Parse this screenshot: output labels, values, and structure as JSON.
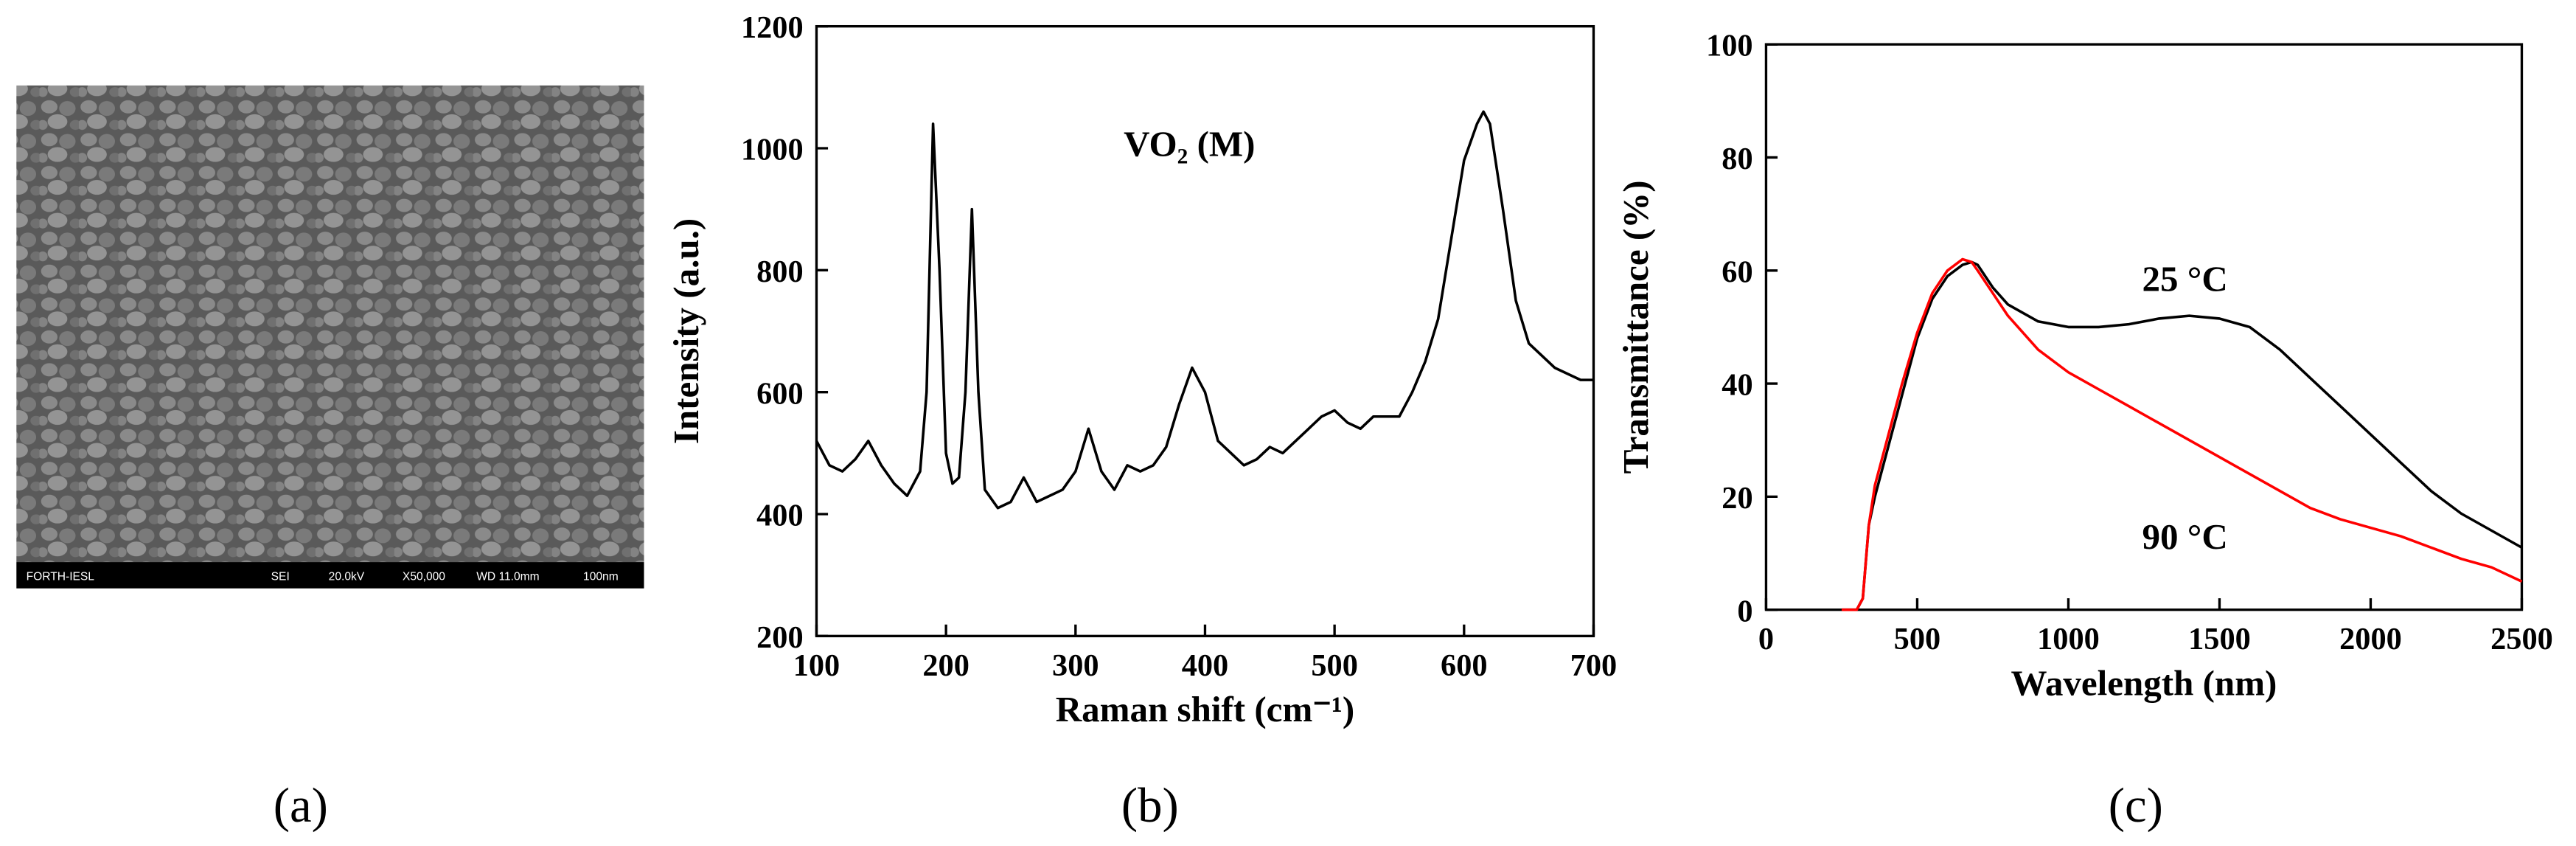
{
  "sem_image": {
    "label": "(a)",
    "info": [
      "FORTH-IESL",
      "SEI",
      "20.0kV",
      "X50,000",
      "WD 11.0mm",
      "100nm"
    ]
  },
  "chart_data": [
    {
      "type": "line",
      "label": "(b)",
      "annotation": "VO₂ (M)",
      "x_label": "Raman shift (cm⁻¹)",
      "y_label": "Intensity (a.u.)",
      "xlim": [
        100,
        700
      ],
      "xticks": [
        100,
        200,
        300,
        400,
        500,
        600,
        700
      ],
      "ylim": [
        200,
        1200
      ],
      "yticks": [
        200,
        400,
        600,
        800,
        1000,
        1200
      ],
      "color": "#000000",
      "x": [
        100,
        110,
        120,
        130,
        140,
        150,
        160,
        170,
        180,
        185,
        190,
        195,
        200,
        205,
        210,
        215,
        220,
        225,
        230,
        240,
        250,
        260,
        270,
        280,
        290,
        300,
        310,
        320,
        330,
        340,
        350,
        360,
        370,
        380,
        390,
        400,
        410,
        420,
        430,
        440,
        450,
        460,
        470,
        480,
        490,
        500,
        510,
        520,
        530,
        540,
        550,
        560,
        570,
        580,
        590,
        600,
        610,
        615,
        620,
        630,
        640,
        650,
        660,
        670,
        680,
        690,
        700
      ],
      "values": [
        520,
        480,
        470,
        490,
        520,
        480,
        450,
        430,
        470,
        600,
        1040,
        800,
        500,
        450,
        460,
        600,
        900,
        600,
        440,
        410,
        420,
        460,
        420,
        430,
        440,
        470,
        540,
        470,
        440,
        480,
        470,
        480,
        510,
        580,
        640,
        600,
        520,
        500,
        480,
        490,
        510,
        500,
        520,
        540,
        560,
        570,
        550,
        540,
        560,
        560,
        560,
        600,
        650,
        720,
        850,
        980,
        1040,
        1060,
        1040,
        900,
        750,
        680,
        660,
        640,
        630,
        620,
        620
      ]
    },
    {
      "type": "line",
      "label": "(c)",
      "x_label": "Wavelength (nm)",
      "y_label": "Transmittance (%)",
      "xlim": [
        0,
        2500
      ],
      "xticks": [
        0,
        500,
        1000,
        1500,
        2000,
        2500
      ],
      "ylim": [
        0,
        100
      ],
      "yticks": [
        0,
        20,
        40,
        60,
        80,
        100
      ],
      "x": [
        250,
        300,
        320,
        340,
        360,
        400,
        450,
        500,
        550,
        600,
        650,
        680,
        700,
        750,
        800,
        900,
        1000,
        1100,
        1200,
        1300,
        1400,
        1500,
        1600,
        1700,
        1800,
        1900,
        2000,
        2100,
        2200,
        2300,
        2400,
        2500
      ],
      "series": [
        {
          "name": "25 °C",
          "color": "#000000",
          "values": [
            0,
            0,
            2,
            15,
            20,
            28,
            38,
            48,
            55,
            59,
            61,
            61.5,
            61,
            57,
            54,
            51,
            50,
            50,
            50.5,
            51.5,
            52,
            51.5,
            50,
            46,
            41,
            36,
            31,
            26,
            21,
            17,
            14,
            11
          ]
        },
        {
          "name": "90 °C",
          "color": "#ff0000",
          "values": [
            0,
            0,
            2,
            15,
            22,
            30,
            40,
            49,
            56,
            60,
            62,
            61.5,
            60,
            56,
            52,
            46,
            42,
            39,
            36,
            33,
            30,
            27,
            24,
            21,
            18,
            16,
            14.5,
            13,
            11,
            9,
            7.5,
            5
          ]
        }
      ]
    }
  ]
}
